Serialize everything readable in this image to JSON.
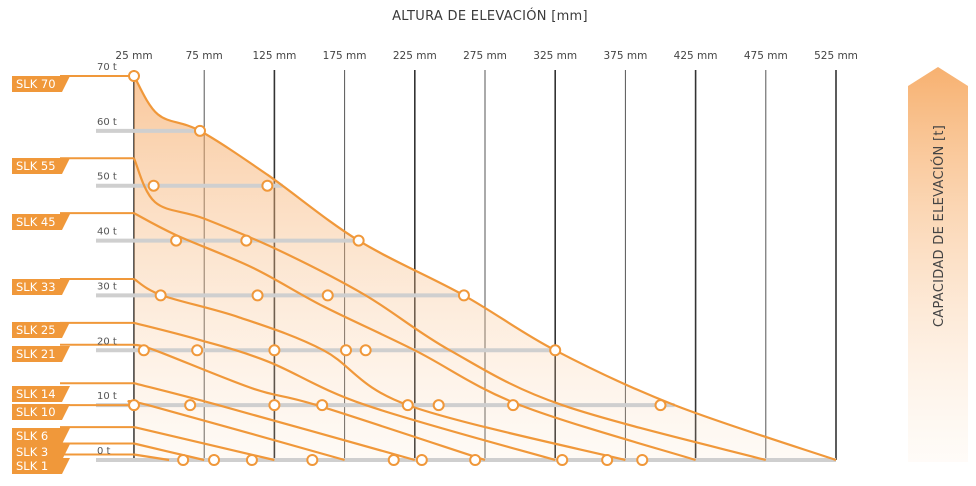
{
  "chart_data": {
    "type": "line",
    "title": "ALTURA DE ELEVACIÓN  [mm]",
    "y_axis_title": "CAPACIDAD DE ELEVACIÓN [t]",
    "x_ticks": [
      "25 mm",
      "75 mm",
      "125 mm",
      "175 mm",
      "225 mm",
      "275 mm",
      "325 mm",
      "375 mm",
      "425 mm",
      "475 mm",
      "525 mm"
    ],
    "x_tick_values": [
      25,
      75,
      125,
      175,
      225,
      275,
      325,
      375,
      425,
      475,
      525
    ],
    "y_ticks": [
      "70 t",
      "60 t",
      "50 t",
      "40 t",
      "30 t",
      "20 t",
      "10 t",
      "0 t"
    ],
    "y_tick_values": [
      70,
      60,
      50,
      40,
      30,
      20,
      10,
      0
    ],
    "xlim": [
      25,
      525
    ],
    "ylim": [
      0,
      70
    ],
    "grid": true,
    "colors": {
      "curve": "#f0983a",
      "label_bg": "#f0983a",
      "gridline": "#cfcfcf",
      "axis": "#333333"
    },
    "series": [
      {
        "name": "SLK 70",
        "points": [
          [
            25,
            70
          ],
          [
            42,
            63
          ],
          [
            72,
            60
          ],
          [
            120,
            52
          ],
          [
            185,
            40
          ],
          [
            260,
            30
          ],
          [
            325,
            20
          ],
          [
            410,
            10
          ],
          [
            525,
            0
          ]
        ],
        "markers": [
          [
            25,
            70
          ],
          [
            72,
            60
          ],
          [
            120,
            50
          ],
          [
            185,
            40
          ],
          [
            260,
            30
          ],
          [
            325,
            20
          ],
          [
            400,
            10
          ],
          [
            387,
            0
          ]
        ]
      },
      {
        "name": "SLK 55",
        "points": [
          [
            25,
            55
          ],
          [
            40,
            47
          ],
          [
            75,
            44
          ],
          [
            130,
            38
          ],
          [
            190,
            30
          ],
          [
            250,
            20
          ],
          [
            330,
            10
          ],
          [
            475,
            0
          ]
        ],
        "markers": [
          [
            39,
            50
          ],
          [
            105,
            40
          ],
          [
            113,
            30
          ],
          [
            176,
            20
          ],
          [
            242,
            10
          ],
          [
            362,
            0
          ]
        ]
      },
      {
        "name": "SLK 45",
        "points": [
          [
            25,
            45
          ],
          [
            55,
            41
          ],
          [
            110,
            35
          ],
          [
            160,
            28
          ],
          [
            225,
            20
          ],
          [
            300,
            10
          ],
          [
            425,
            0
          ]
        ],
        "markers": [
          [
            55,
            40
          ],
          [
            163,
            30
          ],
          [
            190,
            20
          ],
          [
            295,
            10
          ],
          [
            330,
            0
          ]
        ]
      },
      {
        "name": "SLK 33",
        "points": [
          [
            25,
            33
          ],
          [
            45,
            30
          ],
          [
            100,
            26
          ],
          [
            160,
            20
          ],
          [
            220,
            10
          ],
          [
            375,
            0
          ]
        ],
        "markers": [
          [
            44,
            30
          ],
          [
            125,
            20
          ],
          [
            220,
            10
          ],
          [
            268,
            0
          ]
        ]
      },
      {
        "name": "SLK 25",
        "points": [
          [
            25,
            25
          ],
          [
            70,
            22
          ],
          [
            120,
            18
          ],
          [
            190,
            10
          ],
          [
            325,
            0
          ]
        ],
        "markers": [
          [
            70,
            20
          ],
          [
            159,
            10
          ],
          [
            230,
            0
          ]
        ]
      },
      {
        "name": "SLK 21",
        "points": [
          [
            25,
            21
          ],
          [
            40,
            20
          ],
          [
            110,
            13
          ],
          [
            155,
            10
          ],
          [
            275,
            0
          ]
        ],
        "markers": [
          [
            32,
            20
          ],
          [
            125,
            10
          ],
          [
            210,
            0
          ]
        ]
      },
      {
        "name": "SLK 14",
        "points": [
          [
            25,
            14
          ],
          [
            85,
            10
          ],
          [
            225,
            0
          ]
        ],
        "markers": [
          [
            65,
            10
          ],
          [
            152,
            0
          ]
        ]
      },
      {
        "name": "SLK 10",
        "points": [
          [
            25,
            10
          ],
          [
            35,
            10
          ],
          [
            175,
            0
          ]
        ],
        "markers": [
          [
            25,
            10
          ],
          [
            109,
            0
          ]
        ]
      },
      {
        "name": "SLK 6",
        "points": [
          [
            25,
            6
          ],
          [
            125,
            0
          ]
        ],
        "markers": [
          [
            82,
            0
          ]
        ]
      },
      {
        "name": "SLK 3",
        "points": [
          [
            25,
            3
          ],
          [
            75,
            0
          ]
        ],
        "markers": [
          [
            60,
            0
          ]
        ]
      },
      {
        "name": "SLK 1",
        "points": [
          [
            25,
            1
          ],
          [
            50,
            0
          ]
        ],
        "markers": []
      }
    ]
  }
}
